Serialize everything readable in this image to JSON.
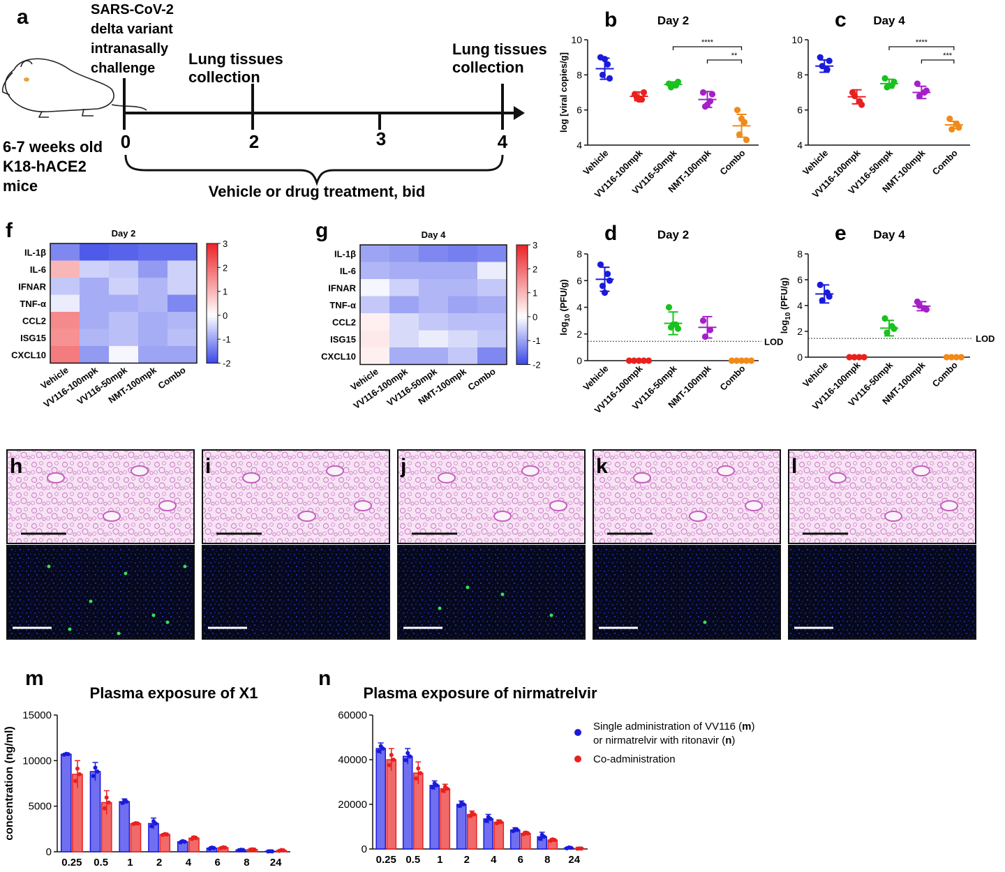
{
  "panel_letters": {
    "a": "a",
    "b": "b",
    "c": "c",
    "d": "d",
    "e": "e",
    "f": "f",
    "g": "g",
    "h": "h",
    "i": "i",
    "j": "j",
    "k": "k",
    "l": "l",
    "m": "m",
    "n": "n"
  },
  "schematic": {
    "challenge": [
      "SARS-CoV-2",
      "delta variant",
      "intranasally",
      "challenge"
    ],
    "collection1": [
      "Lung tissues",
      "collection"
    ],
    "collection2": [
      "Lung tissues",
      "collection"
    ],
    "mice": [
      "6-7 weeks old",
      "K18-hACE2",
      "mice"
    ],
    "timepoints": [
      "0",
      "2",
      "3",
      "4"
    ],
    "treatment": "Vehicle or drug treatment, bid"
  },
  "groups": [
    "Vehicle",
    "VV116-100mpk",
    "VV116-50mpk",
    "NMT-100mpk",
    "Combo"
  ],
  "colors": {
    "vehicle": "#1a1adb",
    "vv116_100": "#e8211f",
    "vv116_50": "#19c21c",
    "nmt": "#a51fc9",
    "combo": "#f08a19",
    "single": "#1a1adb",
    "coadmin": "#e8211f"
  },
  "heatmap_rows": [
    "IL-1β",
    "IL-6",
    "IFNAR",
    "TNF-α",
    "CCL2",
    "ISG15",
    "CXCL10"
  ],
  "colorbar_ticks": [
    "3",
    "2",
    "1",
    "0",
    "-1",
    "-2"
  ],
  "hist_scale_bars": "black (H&E) and white (IF) scale bars",
  "pk_legend": {
    "single_line1": "Single administration of VV116 (",
    "single_m": "m",
    "single_mid": ")",
    "single_line2a": "or nirmatrelvir with ritonavir (",
    "single_n": "n",
    "single_end": ")",
    "coadmin": "Co-administration"
  },
  "chart_data": [
    {
      "id": "b",
      "type": "scatter",
      "title": "Day 2",
      "ylabel": "log [viral copies/g]",
      "ylim": [
        4,
        10
      ],
      "yticks": [
        "4",
        "6",
        "8",
        "10"
      ],
      "categories": [
        "Vehicle",
        "VV116-100mpk",
        "VV116-50mpk",
        "NMT-100mpk",
        "Combo"
      ],
      "series": [
        {
          "name": "Vehicle",
          "points": [
            9.0,
            8.6,
            8.0,
            7.8,
            8.9
          ],
          "mean": 8.35,
          "sd": 0.6
        },
        {
          "name": "VV116-100mpk",
          "points": [
            6.9,
            6.6,
            6.7,
            7.0,
            6.6
          ],
          "mean": 6.78,
          "sd": 0.25
        },
        {
          "name": "VV116-50mpk",
          "points": [
            7.5,
            7.4,
            7.3,
            7.6,
            7.4
          ],
          "mean": 7.45,
          "sd": 0.15
        },
        {
          "name": "NMT-100mpk",
          "points": [
            7.0,
            6.5,
            6.2,
            6.9,
            6.3
          ],
          "mean": 6.6,
          "sd": 0.45
        },
        {
          "name": "Combo",
          "points": [
            6.0,
            5.3,
            4.6,
            4.3,
            5.5
          ],
          "mean": 5.1,
          "sd": 0.65
        }
      ],
      "annotations": [
        {
          "from": "VV116-50mpk",
          "to": "Combo",
          "text": "****"
        },
        {
          "from": "NMT-100mpk",
          "to": "Combo",
          "text": "**"
        }
      ]
    },
    {
      "id": "c",
      "type": "scatter",
      "title": "Day 4",
      "ylabel": "",
      "ylim": [
        4,
        10
      ],
      "yticks": [
        "4",
        "6",
        "8",
        "10"
      ],
      "categories": [
        "Vehicle",
        "VV116-100mpk",
        "VV116-50mpk",
        "NMT-100mpk",
        "Combo"
      ],
      "series": [
        {
          "name": "Vehicle",
          "points": [
            9.0,
            8.3,
            8.5,
            8.8
          ],
          "mean": 8.5,
          "sd": 0.35
        },
        {
          "name": "VV116-100mpk",
          "points": [
            7.0,
            6.5,
            6.8,
            6.3
          ],
          "mean": 6.75,
          "sd": 0.4
        },
        {
          "name": "VV116-50mpk",
          "points": [
            7.8,
            7.4,
            7.3,
            7.6
          ],
          "mean": 7.5,
          "sd": 0.25
        },
        {
          "name": "NMT-100mpk",
          "points": [
            7.5,
            7.0,
            6.8,
            7.1
          ],
          "mean": 7.0,
          "sd": 0.35
        },
        {
          "name": "Combo",
          "points": [
            5.5,
            5.2,
            4.9,
            5.0
          ],
          "mean": 5.15,
          "sd": 0.2
        }
      ],
      "annotations": [
        {
          "from": "VV116-50mpk",
          "to": "Combo",
          "text": "****"
        },
        {
          "from": "NMT-100mpk",
          "to": "Combo",
          "text": "***"
        }
      ]
    },
    {
      "id": "d",
      "type": "scatter",
      "title": "Day 2",
      "ylabel": "log10 (PFU/g)",
      "ylim": [
        0,
        8
      ],
      "yticks": [
        "0",
        "2",
        "4",
        "6",
        "8"
      ],
      "lod": 1.45,
      "lod_label": "LOD",
      "categories": [
        "Vehicle",
        "VV116-100mpk",
        "VV116-50mpk",
        "NMT-100mpk",
        "Combo"
      ],
      "series": [
        {
          "name": "Vehicle",
          "points": [
            7.2,
            6.5,
            5.6,
            6.0,
            5.1
          ],
          "mean": 6.1,
          "sd": 0.9
        },
        {
          "name": "VV116-100mpk",
          "points": [
            0,
            0,
            0,
            0,
            0
          ],
          "mean": 0,
          "sd": 0
        },
        {
          "name": "VV116-50mpk",
          "points": [
            4.0,
            2.7,
            2.5,
            2.4,
            2.7
          ],
          "mean": 2.8,
          "sd": 0.85
        },
        {
          "name": "NMT-100mpk",
          "points": [
            3.0,
            2.3,
            1.8
          ],
          "mean": 2.5,
          "sd": 0.8
        },
        {
          "name": "Combo",
          "points": [
            0,
            0,
            0,
            0,
            0
          ],
          "mean": 0,
          "sd": 0
        }
      ]
    },
    {
      "id": "e",
      "type": "scatter",
      "title": "Day 4",
      "ylabel": "log10 (PFU/g)",
      "ylim": [
        0,
        8
      ],
      "yticks": [
        "0",
        "2",
        "4",
        "6",
        "8"
      ],
      "lod": 1.45,
      "lod_label": "LOD",
      "categories": [
        "Vehicle",
        "VV116-100mpk",
        "VV116-50mpk",
        "NMT-100mpk",
        "Combo"
      ],
      "series": [
        {
          "name": "Vehicle",
          "points": [
            5.6,
            5.0,
            4.4,
            4.7
          ],
          "mean": 4.9,
          "sd": 0.7
        },
        {
          "name": "VV116-100mpk",
          "points": [
            0,
            0,
            0,
            0
          ],
          "mean": 0,
          "sd": 0
        },
        {
          "name": "VV116-50mpk",
          "points": [
            3.0,
            2.4,
            1.9,
            2.2
          ],
          "mean": 2.25,
          "sd": 0.6
        },
        {
          "name": "NMT-100mpk",
          "points": [
            4.3,
            3.8,
            4.0,
            3.7
          ],
          "mean": 3.95,
          "sd": 0.35
        },
        {
          "name": "Combo",
          "points": [
            0,
            0,
            0,
            0
          ],
          "mean": 0,
          "sd": 0
        }
      ]
    },
    {
      "id": "f",
      "type": "heatmap",
      "title": "Day 2",
      "rows": [
        "IL-1β",
        "IL-6",
        "IFNAR",
        "TNF-α",
        "CCL2",
        "ISG15",
        "CXCL10"
      ],
      "columns": [
        "Vehicle",
        "VV116-100mpk",
        "VV116-50mpk",
        "NMT-100mpk",
        "Combo"
      ],
      "range": [
        -2,
        3
      ],
      "values": [
        [
          -1.3,
          -1.8,
          -1.7,
          -1.6,
          -1.6
        ],
        [
          1.0,
          -0.5,
          -0.6,
          -1.1,
          -0.5
        ],
        [
          -0.6,
          -0.9,
          -0.5,
          -0.8,
          -0.5
        ],
        [
          -0.2,
          -0.9,
          -0.9,
          -0.8,
          -1.3
        ],
        [
          1.6,
          -0.9,
          -0.7,
          -0.9,
          -0.8
        ],
        [
          1.5,
          -0.8,
          -0.7,
          -0.9,
          -0.7
        ],
        [
          1.8,
          -1.1,
          -0.1,
          -1.0,
          -1.0
        ]
      ]
    },
    {
      "id": "g",
      "type": "heatmap",
      "title": "Day 4",
      "rows": [
        "IL-1β",
        "IL-6",
        "IFNAR",
        "TNF-α",
        "CCL2",
        "ISG15",
        "CXCL10"
      ],
      "columns": [
        "Vehicle",
        "VV116-100mpk",
        "VV116-50mpk",
        "NMT-100mpk",
        "Combo"
      ],
      "range": [
        -2,
        3
      ],
      "values": [
        [
          -1.0,
          -1.1,
          -1.3,
          -1.4,
          -1.3
        ],
        [
          -0.8,
          -0.9,
          -0.9,
          -0.9,
          -0.2
        ],
        [
          -0.1,
          -0.5,
          -0.8,
          -0.8,
          -0.6
        ],
        [
          -0.6,
          -1.0,
          -0.8,
          -1.0,
          -0.9
        ],
        [
          0.2,
          -0.4,
          -0.6,
          -0.7,
          -0.7
        ],
        [
          0.3,
          -0.4,
          -0.2,
          -0.4,
          -0.6
        ],
        [
          0.2,
          -0.9,
          -0.9,
          -0.6,
          -1.3
        ]
      ]
    },
    {
      "id": "m",
      "type": "bar",
      "title": "Plasma exposure of X1",
      "ylabel": "concentration (ng/ml)",
      "ylim": [
        0,
        15000
      ],
      "yticks": [
        "0",
        "5000",
        "10000",
        "15000"
      ],
      "categories": [
        "0.25",
        "0.5",
        "1",
        "2",
        "4",
        "6",
        "8",
        "24"
      ],
      "series": [
        {
          "name": "Single administration",
          "values": [
            10700,
            8800,
            5500,
            3100,
            1100,
            400,
            200,
            50
          ],
          "sd": [
            100,
            1000,
            300,
            600,
            150,
            150,
            50,
            20
          ]
        },
        {
          "name": "Co-administration",
          "values": [
            8500,
            5400,
            3100,
            1900,
            1500,
            450,
            250,
            150
          ],
          "sd": [
            1500,
            1300,
            100,
            100,
            200,
            100,
            50,
            100
          ]
        }
      ]
    },
    {
      "id": "n",
      "type": "bar",
      "title": "Plasma exposure of nirmatrelvir",
      "ylim": [
        0,
        60000
      ],
      "yticks": [
        "0",
        "20000",
        "40000",
        "60000"
      ],
      "categories": [
        "0.25",
        "0.5",
        "1",
        "2",
        "4",
        "6",
        "8",
        "24"
      ],
      "series": [
        {
          "name": "Single administration",
          "values": [
            45000,
            41500,
            28500,
            20000,
            13500,
            8500,
            5500,
            500
          ],
          "sd": [
            2500,
            3500,
            2000,
            1500,
            2000,
            1000,
            2000,
            400
          ]
        },
        {
          "name": "Co-administration",
          "values": [
            40000,
            34000,
            27000,
            15500,
            12000,
            7000,
            4000,
            200
          ],
          "sd": [
            5000,
            5000,
            2000,
            1500,
            1000,
            800,
            700,
            100
          ]
        }
      ]
    }
  ]
}
